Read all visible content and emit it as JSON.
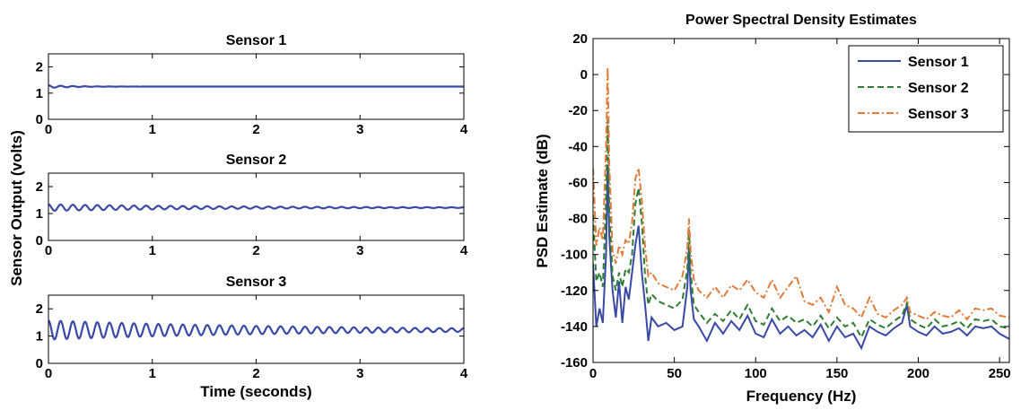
{
  "colors": {
    "sensor1": "#3949a8",
    "sensor2": "#2e7d32",
    "sensor3": "#e07b39",
    "axis": "#000000"
  },
  "chart_data": [
    {
      "type": "line",
      "id": "time_sensor1",
      "title": "Sensor 1",
      "xlabel": "",
      "ylabel": "Sensor Output (volts)",
      "xlim": [
        0,
        4
      ],
      "ylim": [
        0,
        2.5
      ],
      "xticks": [
        0,
        1,
        2,
        3,
        4
      ],
      "yticks": [
        0,
        1,
        2
      ],
      "grid": false,
      "signal": {
        "baseline": 1.25,
        "initial_amplitude": 0.05,
        "decay_per_second": 4.0,
        "frequency_hz": 8.5,
        "color": "#3949a8"
      }
    },
    {
      "type": "line",
      "id": "time_sensor2",
      "title": "Sensor 2",
      "xlabel": "",
      "ylabel": "",
      "xlim": [
        0,
        4
      ],
      "ylim": [
        0,
        2.5
      ],
      "xticks": [
        0,
        1,
        2,
        3,
        4
      ],
      "yticks": [
        0,
        1,
        2
      ],
      "grid": false,
      "signal": {
        "baseline": 1.22,
        "initial_amplitude": 0.12,
        "decay_per_second": 0.55,
        "frequency_hz": 8.5,
        "color": "#3949a8"
      }
    },
    {
      "type": "line",
      "id": "time_sensor3",
      "title": "Sensor 3",
      "xlabel": "Time (seconds)",
      "ylabel": "",
      "xlim": [
        0,
        4
      ],
      "ylim": [
        0,
        2.5
      ],
      "xticks": [
        0,
        1,
        2,
        3,
        4
      ],
      "yticks": [
        0,
        1,
        2
      ],
      "grid": false,
      "signal": {
        "baseline": 1.22,
        "initial_amplitude": 0.35,
        "decay_per_second": 0.42,
        "frequency_hz": 8.5,
        "color": "#3949a8"
      }
    },
    {
      "type": "line",
      "id": "psd",
      "title": "Power Spectral Density Estimates",
      "xlabel": "Frequency (Hz)",
      "ylabel": "PSD Estimate (dB)",
      "xlim": [
        0,
        256
      ],
      "ylim": [
        -160,
        20
      ],
      "xticks": [
        0,
        50,
        100,
        150,
        200,
        250
      ],
      "yticks": [
        20,
        0,
        -20,
        -40,
        -60,
        -80,
        -100,
        -120,
        -140,
        -160
      ],
      "grid": false,
      "legend": "top-right",
      "series": [
        {
          "name": "Sensor 1",
          "color": "#3949a8",
          "dash": "",
          "x": [
            0,
            2,
            4,
            6,
            8,
            9,
            10,
            12,
            14,
            16,
            18,
            20,
            22,
            24,
            26,
            28,
            30,
            32,
            34,
            36,
            40,
            45,
            50,
            55,
            58,
            59,
            60,
            62,
            65,
            70,
            75,
            80,
            85,
            90,
            95,
            100,
            105,
            110,
            115,
            120,
            125,
            130,
            135,
            140,
            145,
            150,
            155,
            160,
            165,
            170,
            175,
            180,
            185,
            190,
            193,
            195,
            200,
            205,
            210,
            215,
            220,
            225,
            230,
            235,
            240,
            245,
            250,
            256
          ],
          "y": [
            -105,
            -140,
            -130,
            -138,
            -100,
            -50,
            -90,
            -120,
            -135,
            -115,
            -138,
            -118,
            -125,
            -110,
            -95,
            -84,
            -110,
            -128,
            -148,
            -135,
            -140,
            -138,
            -142,
            -140,
            -118,
            -96,
            -120,
            -136,
            -140,
            -148,
            -138,
            -144,
            -137,
            -142,
            -134,
            -144,
            -146,
            -136,
            -144,
            -140,
            -145,
            -142,
            -146,
            -139,
            -148,
            -140,
            -146,
            -144,
            -152,
            -140,
            -143,
            -145,
            -141,
            -138,
            -128,
            -140,
            -143,
            -145,
            -140,
            -144,
            -143,
            -141,
            -145,
            -140,
            -141,
            -140,
            -144,
            -147
          ]
        },
        {
          "name": "Sensor 2",
          "color": "#2e7d32",
          "dash": "7,4",
          "x": [
            0,
            2,
            4,
            6,
            8,
            9,
            10,
            12,
            14,
            16,
            18,
            20,
            22,
            24,
            26,
            28,
            30,
            32,
            34,
            36,
            40,
            45,
            50,
            55,
            58,
            59,
            60,
            62,
            65,
            70,
            75,
            80,
            85,
            90,
            95,
            100,
            105,
            110,
            115,
            120,
            125,
            130,
            135,
            140,
            145,
            150,
            155,
            160,
            165,
            170,
            175,
            180,
            185,
            190,
            193,
            195,
            200,
            205,
            210,
            215,
            220,
            225,
            230,
            235,
            240,
            245,
            250,
            256
          ],
          "y": [
            -78,
            -115,
            -110,
            -118,
            -70,
            -25,
            -75,
            -112,
            -120,
            -110,
            -118,
            -108,
            -110,
            -100,
            -72,
            -63,
            -82,
            -112,
            -128,
            -122,
            -126,
            -128,
            -130,
            -125,
            -108,
            -86,
            -110,
            -128,
            -132,
            -138,
            -133,
            -137,
            -131,
            -136,
            -128,
            -137,
            -139,
            -130,
            -137,
            -134,
            -138,
            -136,
            -140,
            -134,
            -141,
            -135,
            -140,
            -138,
            -146,
            -136,
            -139,
            -141,
            -137,
            -134,
            -127,
            -136,
            -139,
            -141,
            -136,
            -140,
            -139,
            -137,
            -141,
            -136,
            -137,
            -136,
            -140,
            -141
          ]
        },
        {
          "name": "Sensor 3",
          "color": "#e07b39",
          "dash": "8,3,2,3",
          "x": [
            0,
            2,
            4,
            6,
            8,
            9,
            10,
            12,
            14,
            16,
            18,
            20,
            22,
            24,
            26,
            28,
            30,
            32,
            34,
            36,
            40,
            45,
            50,
            55,
            58,
            59,
            60,
            62,
            65,
            70,
            75,
            80,
            85,
            90,
            95,
            100,
            105,
            110,
            115,
            120,
            125,
            130,
            135,
            140,
            145,
            150,
            155,
            160,
            165,
            170,
            175,
            180,
            185,
            190,
            193,
            195,
            200,
            205,
            210,
            215,
            220,
            225,
            230,
            235,
            240,
            245,
            250,
            256
          ],
          "y": [
            -52,
            -95,
            -85,
            -92,
            -40,
            4,
            -50,
            -98,
            -105,
            -95,
            -100,
            -92,
            -94,
            -82,
            -58,
            -52,
            -70,
            -96,
            -112,
            -110,
            -116,
            -118,
            -120,
            -112,
            -96,
            -80,
            -98,
            -114,
            -120,
            -124,
            -118,
            -124,
            -117,
            -120,
            -114,
            -121,
            -124,
            -114,
            -124,
            -118,
            -112,
            -126,
            -128,
            -124,
            -132,
            -118,
            -128,
            -130,
            -135,
            -124,
            -133,
            -135,
            -131,
            -128,
            -124,
            -132,
            -134,
            -136,
            -132,
            -134,
            -135,
            -131,
            -136,
            -130,
            -131,
            -130,
            -134,
            -135
          ]
        }
      ]
    }
  ]
}
